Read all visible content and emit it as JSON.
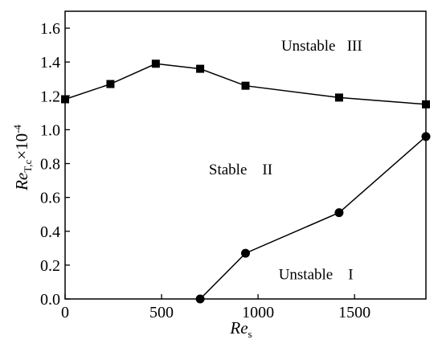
{
  "chart_data": {
    "type": "line",
    "x_axis": {
      "label_main": "Re",
      "label_sub": "s",
      "ticks": [
        0,
        500,
        1000,
        1500
      ],
      "tick_labels": [
        "0",
        "500",
        "1000",
        "1500"
      ],
      "range": [
        0,
        1870
      ]
    },
    "y_axis": {
      "label_main": "Re",
      "label_sub": "T,c",
      "label_suffix": "×10",
      "label_exp": "-4",
      "ticks": [
        0.0,
        0.2,
        0.4,
        0.6,
        0.8,
        1.0,
        1.2,
        1.4,
        1.6
      ],
      "tick_labels": [
        "0.0",
        "0.2",
        "0.4",
        "0.6",
        "0.8",
        "1.0",
        "1.2",
        "1.4",
        "1.6"
      ],
      "range": [
        0.0,
        1.7
      ]
    },
    "series": [
      {
        "marker": "square",
        "x": [
          0,
          235,
          470,
          700,
          935,
          1420,
          1870
        ],
        "y": [
          1.18,
          1.27,
          1.39,
          1.36,
          1.26,
          1.19,
          1.15
        ]
      },
      {
        "marker": "circle",
        "x": [
          700,
          935,
          1420,
          1870
        ],
        "y": [
          0.0,
          0.27,
          0.51,
          0.96
        ]
      }
    ],
    "annotations": [
      {
        "text": "Unstable   III",
        "x": 1330,
        "y": 1.5
      },
      {
        "text": "Stable    II",
        "x": 910,
        "y": 0.77
      },
      {
        "text": "Unstable    I",
        "x": 1300,
        "y": 0.15
      }
    ],
    "grid": false,
    "legend": "none",
    "colors": {
      "line": "#000000",
      "marker": "#000000",
      "background": "#ffffff"
    }
  }
}
